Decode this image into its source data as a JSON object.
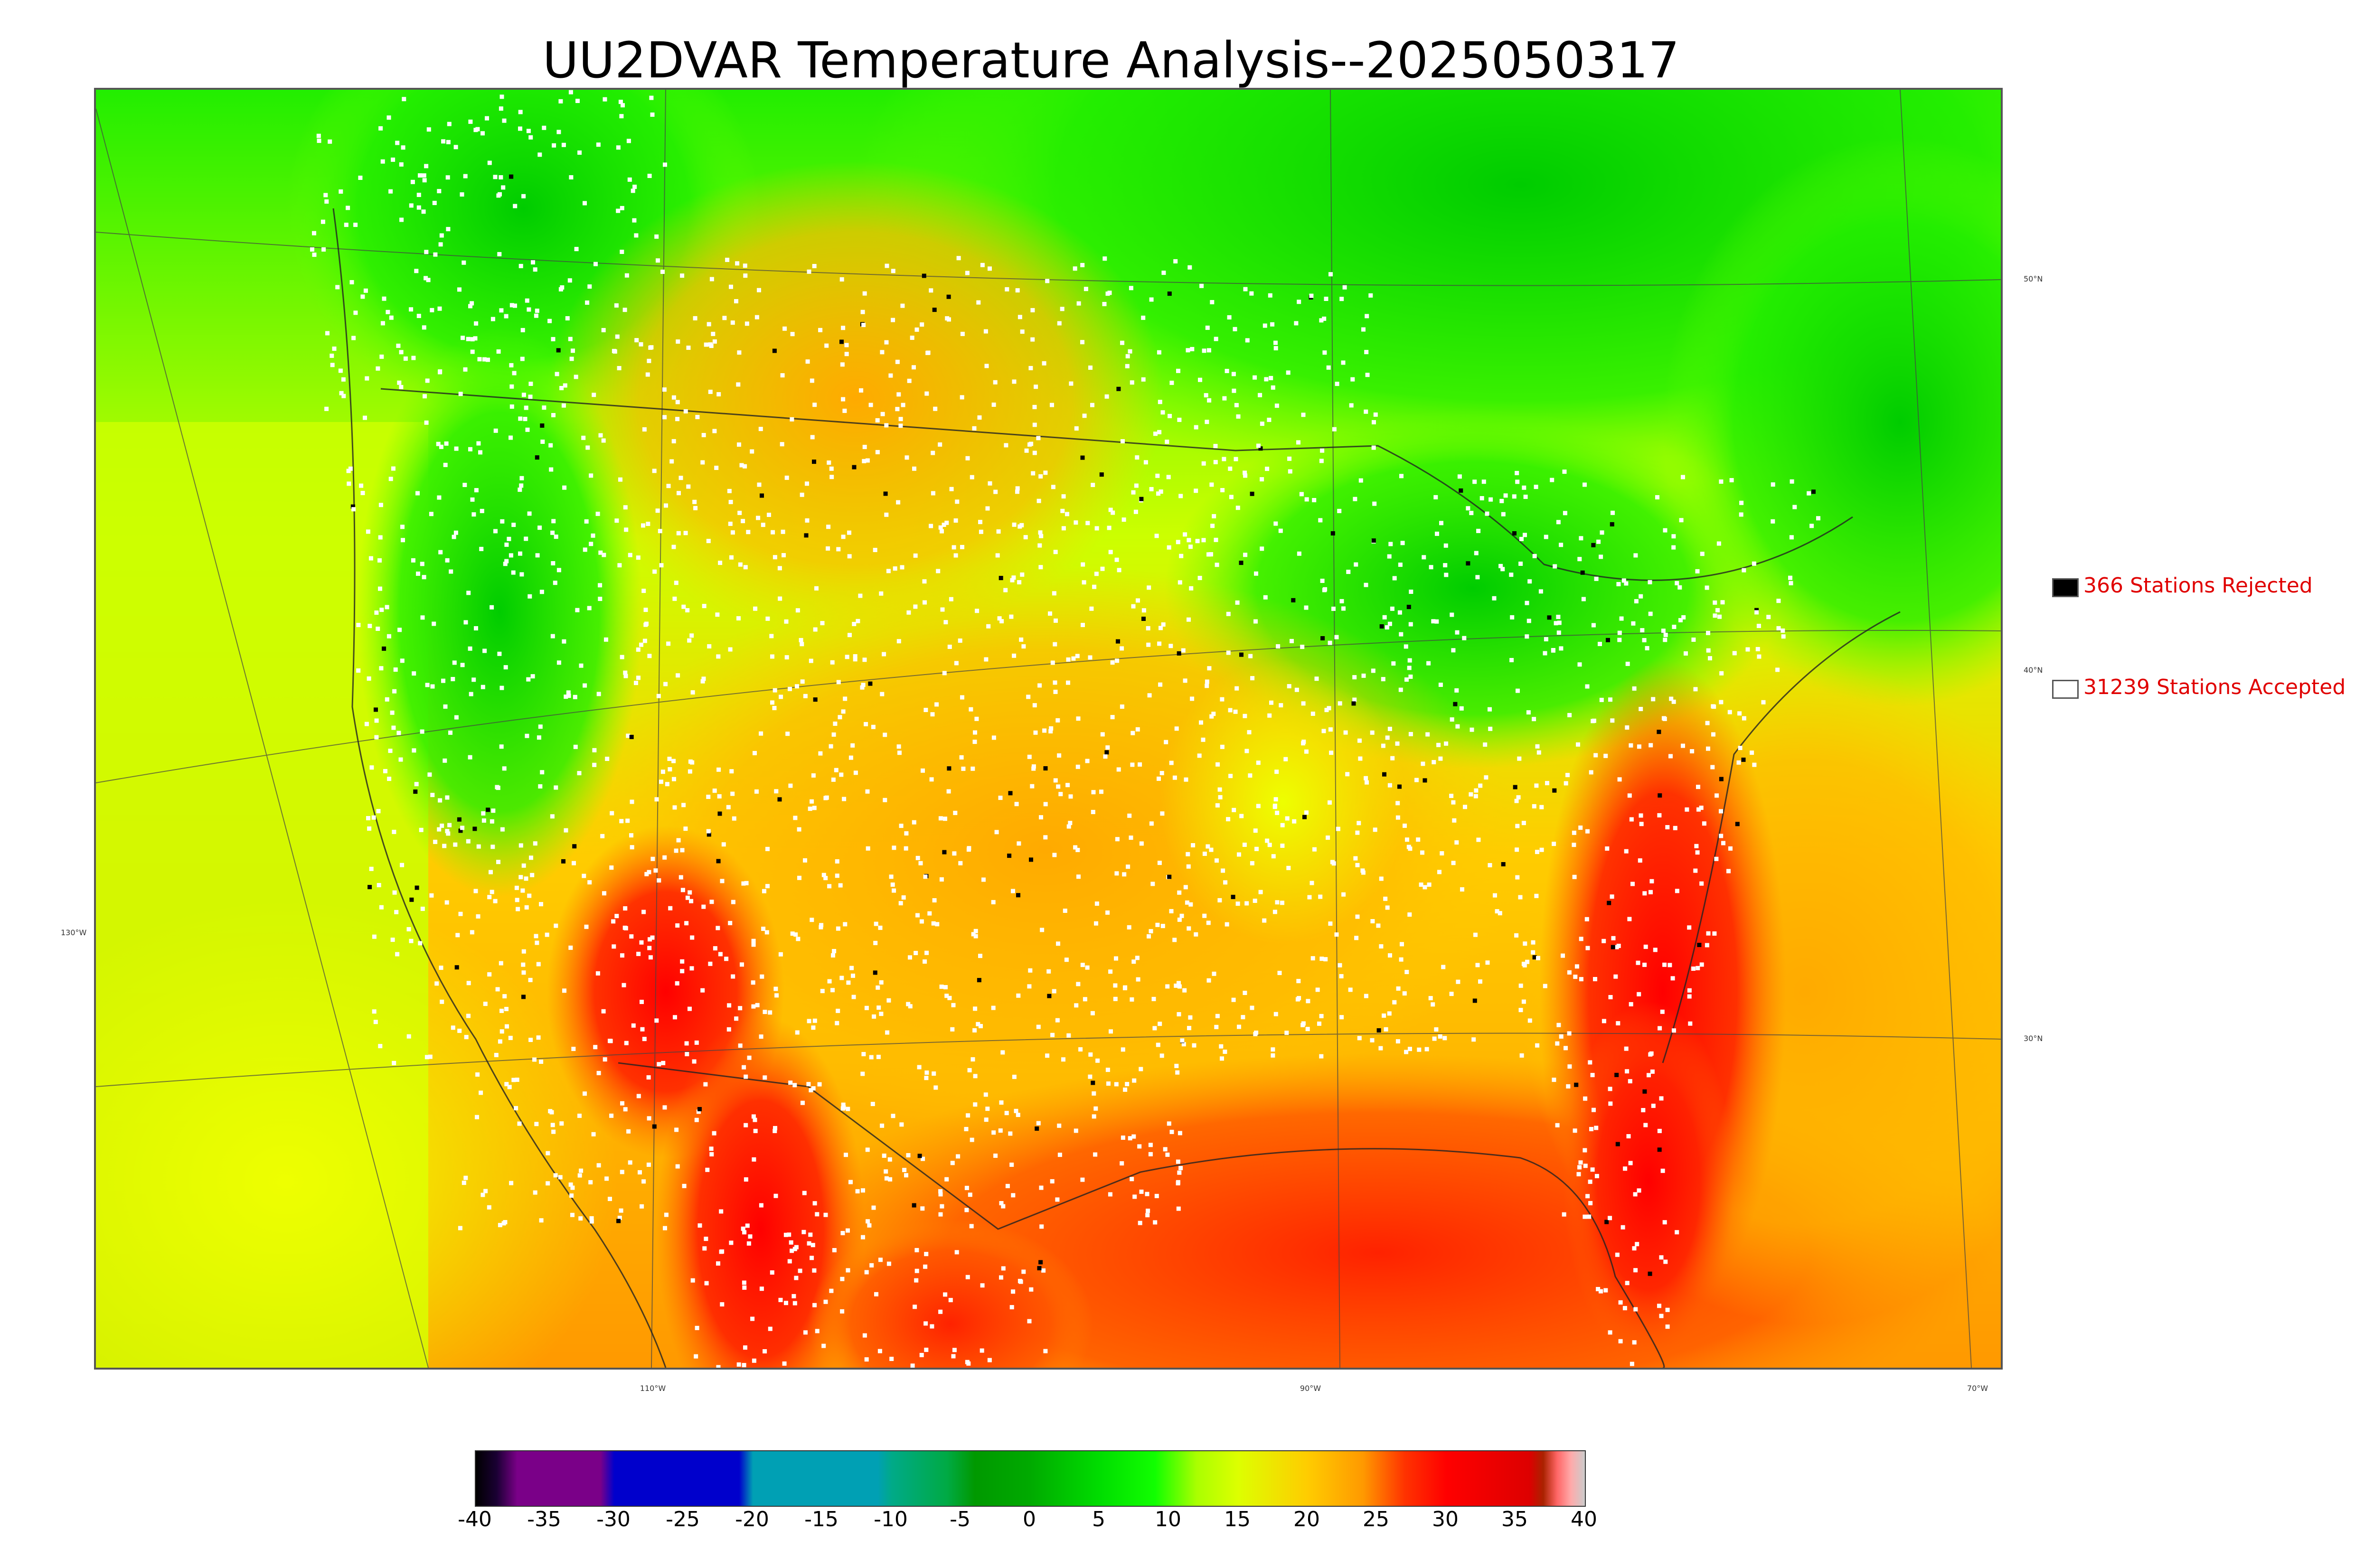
{
  "title": "UU2DVAR Temperature Analysis--2025050317",
  "legend": {
    "rejected_label": "366 Stations Rejected",
    "accepted_label": "31239 Stations Accepted",
    "rejected_color": "#000000",
    "accepted_color": "#ffffff",
    "text_color": "#e00000"
  },
  "longitude_labels": [
    "130°W",
    "110°W",
    "90°W",
    "70°W"
  ],
  "latitude_labels": [
    "50°N",
    "40°N",
    "30°N"
  ],
  "colorbar": {
    "min": -40,
    "max": 40,
    "ticks": [
      "-40",
      "-35",
      "-30",
      "-25",
      "-20",
      "-15",
      "-10",
      "-5",
      "0",
      "5",
      "10",
      "15",
      "20",
      "25",
      "30",
      "35",
      "40"
    ],
    "stops": [
      {
        "v": -40,
        "c": "#000000"
      },
      {
        "v": -38.5,
        "c": "#1a0033"
      },
      {
        "v": -37,
        "c": "#7a0088"
      },
      {
        "v": -31,
        "c": "#7a0088"
      },
      {
        "v": -30,
        "c": "#0000cc"
      },
      {
        "v": -21,
        "c": "#0000cc"
      },
      {
        "v": -20,
        "c": "#00a0b4"
      },
      {
        "v": -11,
        "c": "#00a0b4"
      },
      {
        "v": -10,
        "c": "#00aa88"
      },
      {
        "v": -6,
        "c": "#00aa44"
      },
      {
        "v": -4,
        "c": "#009900"
      },
      {
        "v": 0,
        "c": "#00aa00"
      },
      {
        "v": 5,
        "c": "#00dd00"
      },
      {
        "v": 9,
        "c": "#11ff00"
      },
      {
        "v": 12,
        "c": "#aaff00"
      },
      {
        "v": 15,
        "c": "#ddff00"
      },
      {
        "v": 20,
        "c": "#ffcc00"
      },
      {
        "v": 24,
        "c": "#ff9900"
      },
      {
        "v": 27,
        "c": "#ff3300"
      },
      {
        "v": 30,
        "c": "#ff0000"
      },
      {
        "v": 36,
        "c": "#dd0000"
      },
      {
        "v": 37,
        "c": "#aa2200"
      },
      {
        "v": 38,
        "c": "#ff6666"
      },
      {
        "v": 39,
        "c": "#ffaaaa"
      },
      {
        "v": 40,
        "c": "#cccccc"
      }
    ]
  }
}
